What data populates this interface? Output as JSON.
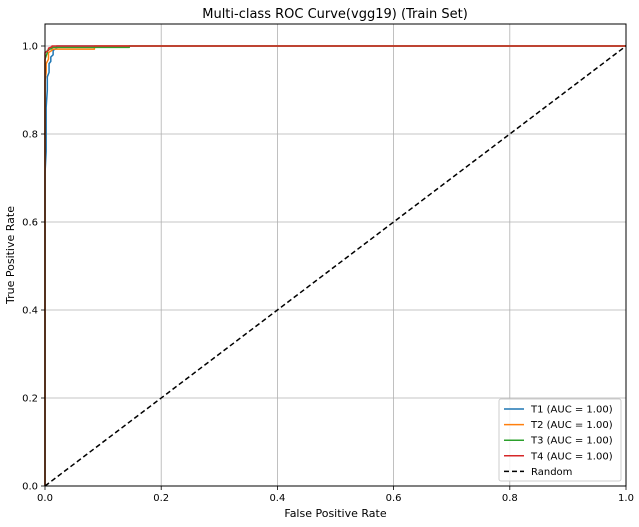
{
  "chart_data": {
    "type": "line",
    "title": "Multi-class ROC Curve(vgg19) (Train Set)",
    "xlabel": "False Positive Rate",
    "ylabel": "True Positive Rate",
    "xlim": [
      0,
      1
    ],
    "ylim": [
      0,
      1.05
    ],
    "xticks": [
      0.0,
      0.2,
      0.4,
      0.6,
      0.8,
      1.0
    ],
    "xtick_labels": [
      "0.0",
      "0.2",
      "0.4",
      "0.6",
      "0.8",
      "1.0"
    ],
    "yticks": [
      0.0,
      0.2,
      0.4,
      0.6,
      0.8,
      1.0
    ],
    "ytick_labels": [
      "0.0",
      "0.2",
      "0.4",
      "0.6",
      "0.8",
      "1.0"
    ],
    "grid": true,
    "legend_position": "bottom-right",
    "series": [
      {
        "name": "T1 (AUC = 1.00)",
        "color": "#1f77b4",
        "x": [
          0,
          0,
          0.002,
          0.002,
          0.004,
          0.004,
          0.007,
          0.007,
          0.01,
          0.01,
          0.014,
          0.014,
          0.02,
          0.02,
          1.0
        ],
        "y": [
          0,
          0.71,
          0.76,
          0.86,
          0.9,
          0.93,
          0.94,
          0.96,
          0.965,
          0.975,
          0.98,
          0.99,
          0.995,
          1.0,
          1.0
        ]
      },
      {
        "name": "T2 (AUC = 1.00)",
        "color": "#ff7f0e",
        "x": [
          0,
          0,
          0.002,
          0.002,
          0.006,
          0.006,
          0.012,
          0.012,
          0.085,
          0.085,
          1.0
        ],
        "y": [
          0,
          0.92,
          0.94,
          0.96,
          0.97,
          0.985,
          0.99,
          0.993,
          0.993,
          1.0,
          1.0
        ]
      },
      {
        "name": "T3 (AUC = 1.00)",
        "color": "#2ca02c",
        "x": [
          0,
          0,
          0.004,
          0.004,
          0.012,
          0.012,
          0.145,
          0.145,
          1.0
        ],
        "y": [
          0,
          0.97,
          0.985,
          0.99,
          0.995,
          0.997,
          0.997,
          1.0,
          1.0
        ]
      },
      {
        "name": "T4 (AUC = 1.00)",
        "color": "#d62728",
        "x": [
          0,
          0,
          0.006,
          0.006,
          0.012,
          0.012,
          1.0
        ],
        "y": [
          0,
          0.985,
          0.99,
          0.995,
          0.998,
          1.0,
          1.0
        ]
      },
      {
        "name": "Random",
        "color": "#000000",
        "dashed": true,
        "x": [
          0,
          1
        ],
        "y": [
          0,
          1
        ]
      }
    ]
  }
}
